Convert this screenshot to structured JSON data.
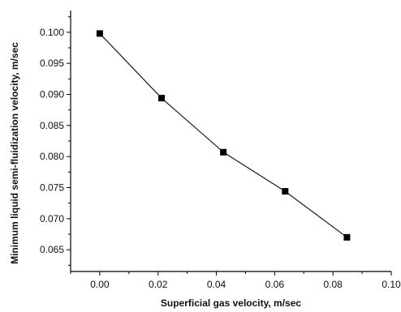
{
  "chart_data": {
    "type": "line",
    "title": "",
    "xlabel": "Superficial gas velocity, m/sec",
    "ylabel": "Minimum liquid semi-fluidization velocity, m/sec",
    "xlim": [
      -0.01,
      0.1
    ],
    "ylim": [
      0.0615,
      0.1035
    ],
    "x_ticks": [
      0.0,
      0.02,
      0.04,
      0.06,
      0.08,
      0.1
    ],
    "x_tick_labels": [
      "0.00",
      "0.02",
      "0.04",
      "0.06",
      "0.08",
      "0.10"
    ],
    "y_ticks": [
      0.065,
      0.07,
      0.075,
      0.08,
      0.085,
      0.09,
      0.095,
      0.1
    ],
    "y_tick_labels": [
      "0.065",
      "0.070",
      "0.075",
      "0.080",
      "0.085",
      "0.090",
      "0.095",
      "0.100"
    ],
    "grid": false,
    "legend": "none",
    "marker": "square",
    "series": [
      {
        "x": [
          0.0,
          0.0212,
          0.0424,
          0.0636,
          0.0848
        ],
        "y": [
          0.0998,
          0.0894,
          0.0807,
          0.0744,
          0.067
        ]
      }
    ],
    "colors": {
      "line": "#1a1a1a",
      "marker": "#000000",
      "axis": "#000000"
    }
  }
}
